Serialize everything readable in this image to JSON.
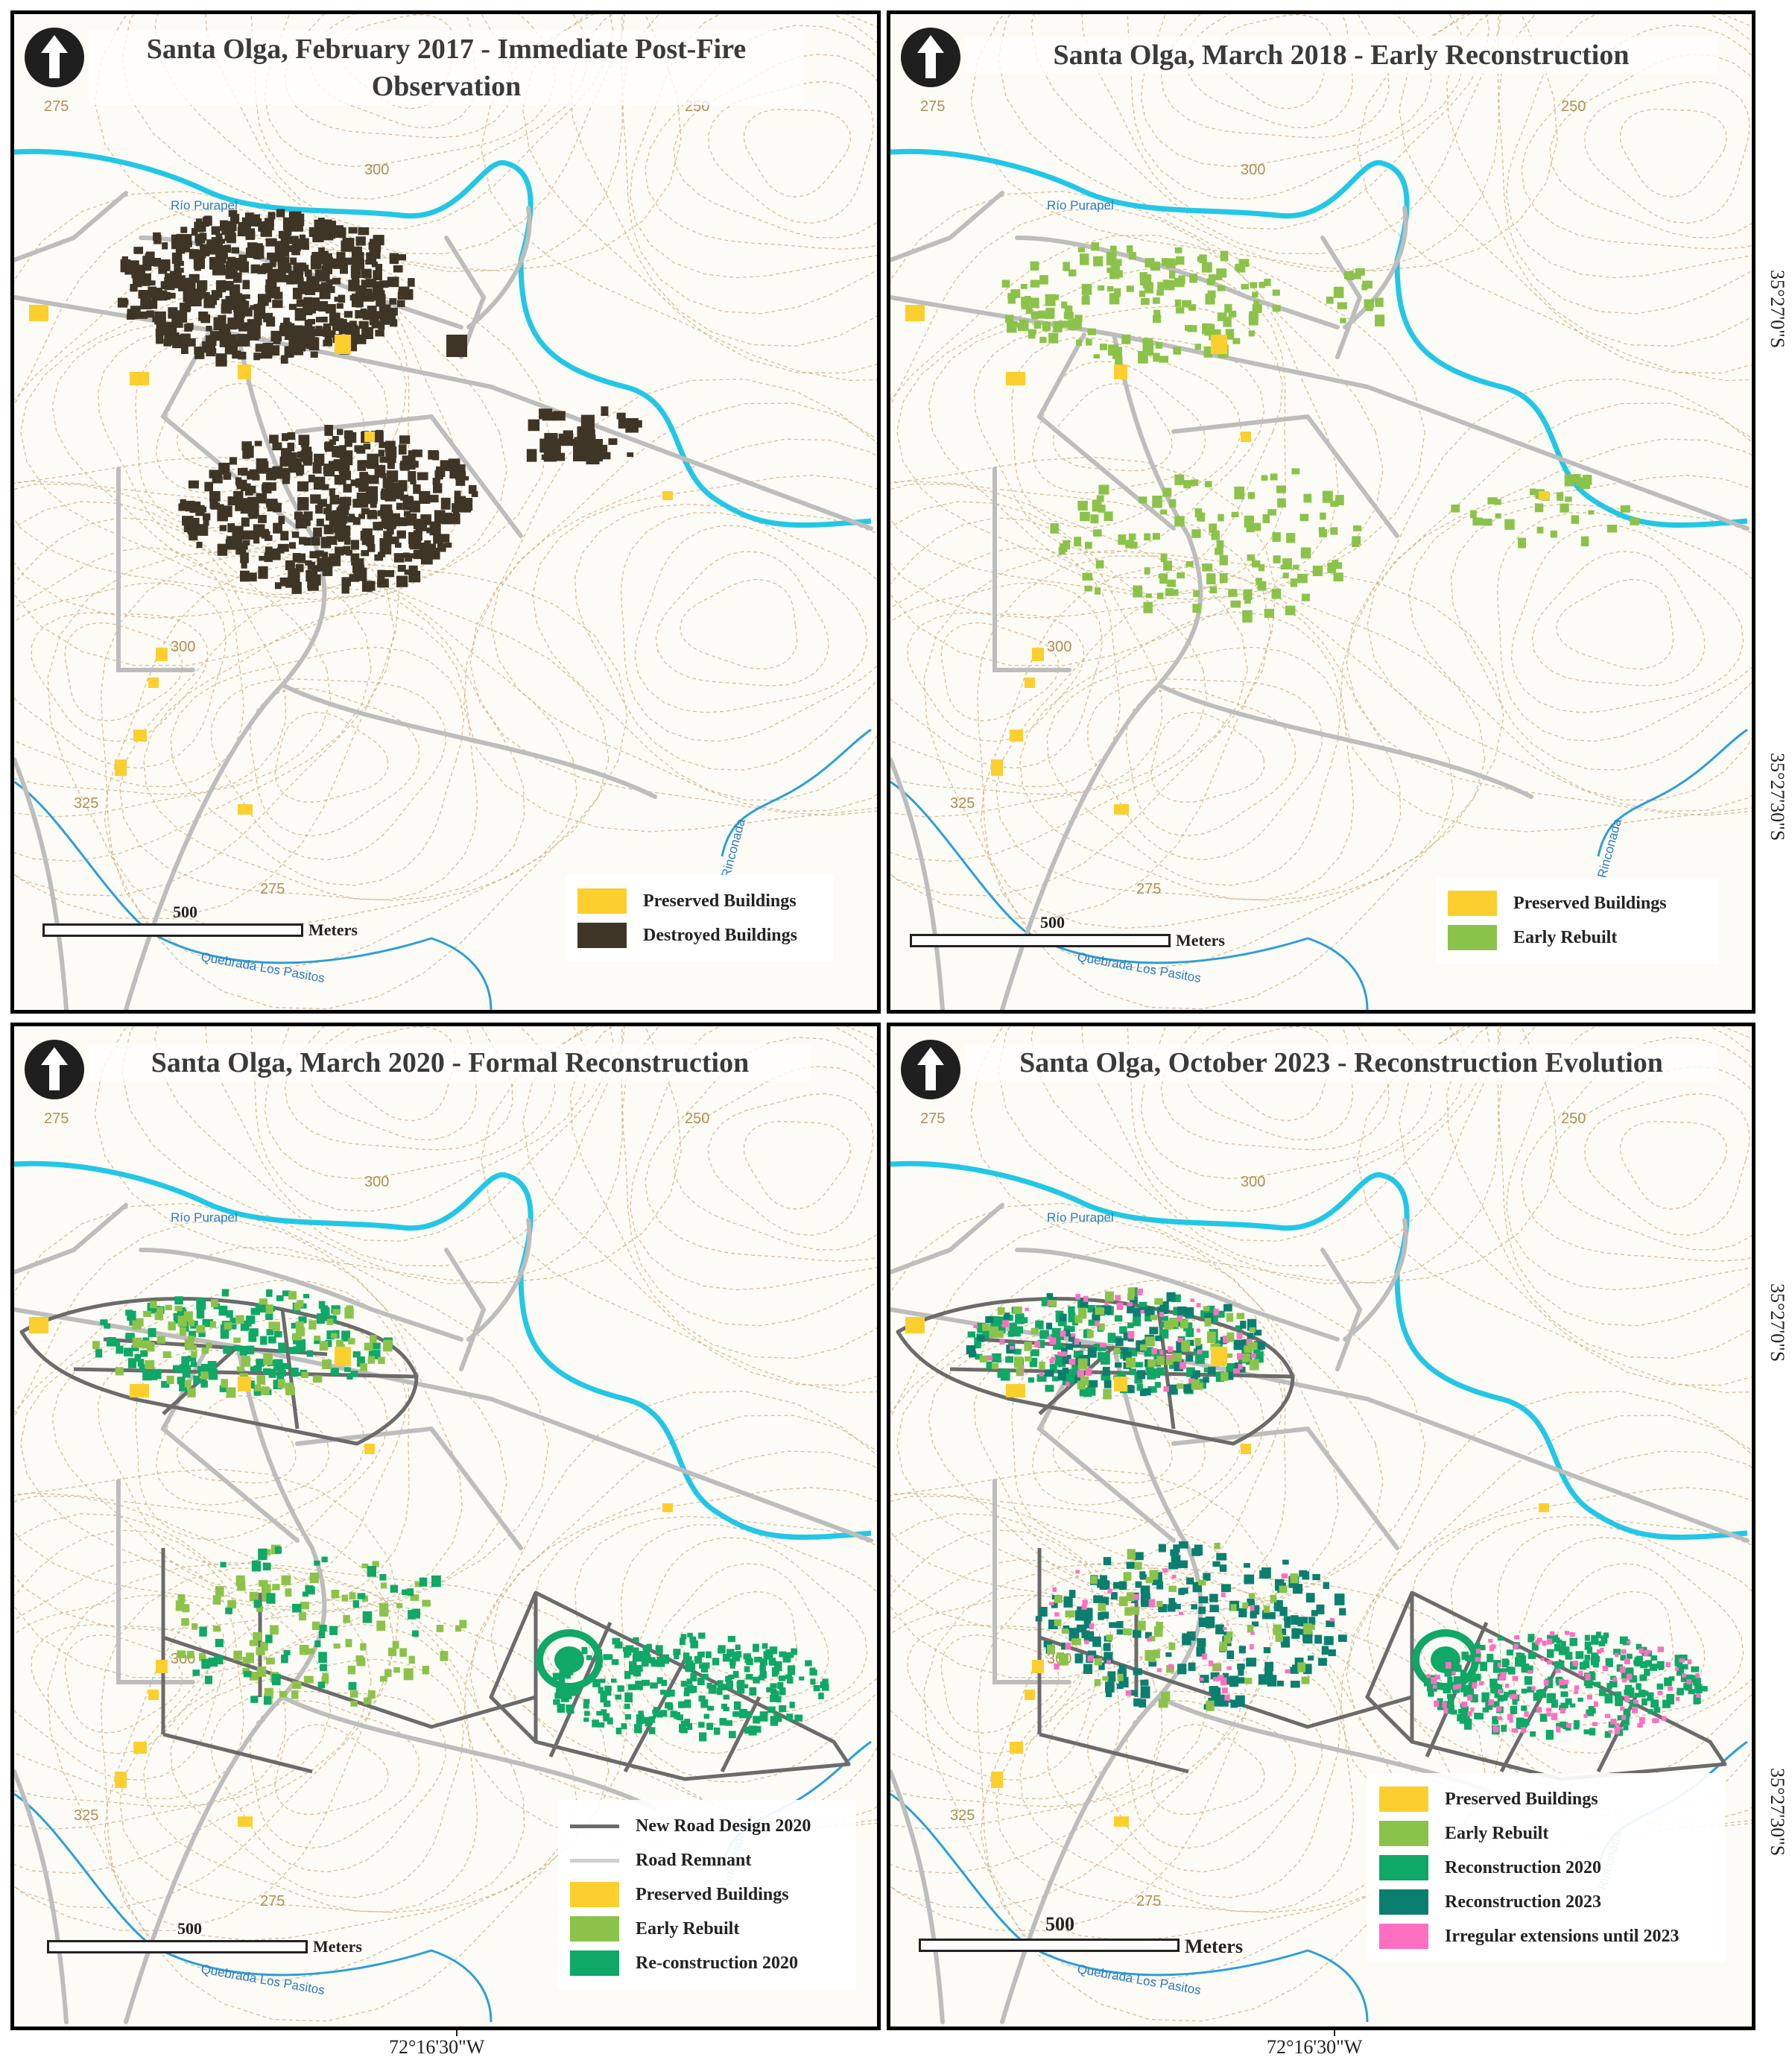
{
  "figure": {
    "panels": [
      {
        "title": "Santa Olga, February 2017 - Immediate Post-Fire Observation",
        "title_lines": [
          "Santa Olga, February 2017 - Immediate Post-Fire",
          "Observation"
        ],
        "legend": [
          {
            "type": "fill",
            "color": "#fccf2e",
            "label": "Preserved Buildings"
          },
          {
            "type": "fill",
            "color": "#3f3526",
            "label": "Destroyed Buildings"
          }
        ],
        "scale": {
          "value": "500",
          "unit": "Meters"
        }
      },
      {
        "title": "Santa Olga, March 2018 - Early Reconstruction",
        "title_lines": [
          "Santa Olga, March 2018 - Early Reconstruction"
        ],
        "legend": [
          {
            "type": "fill",
            "color": "#fccf2e",
            "label": "Preserved Buildings"
          },
          {
            "type": "fill",
            "color": "#8bc34a",
            "label": "Early Rebuilt"
          }
        ],
        "scale": {
          "value": "500",
          "unit": "Meters"
        }
      },
      {
        "title": "Santa Olga, March 2020 - Formal Reconstruction",
        "title_lines": [
          "Santa Olga, March 2020 - Formal Reconstruction"
        ],
        "legend": [
          {
            "type": "line",
            "color": "#6b6b6b",
            "label": "New Road Design 2020"
          },
          {
            "type": "line",
            "color": "#cfcfcf",
            "label": "Road Remnant"
          },
          {
            "type": "fill",
            "color": "#fccf2e",
            "label": "Preserved Buildings"
          },
          {
            "type": "fill",
            "color": "#8bc34a",
            "label": "Early Rebuilt"
          },
          {
            "type": "fill",
            "color": "#0fa866",
            "label": "Re-construction 2020"
          }
        ],
        "scale": {
          "value": "500",
          "unit": "Meters"
        }
      },
      {
        "title": "Santa Olga, October 2023 - Reconstruction Evolution",
        "title_lines": [
          "Santa Olga, October 2023 - Reconstruction Evolution"
        ],
        "legend": [
          {
            "type": "fill",
            "color": "#fccf2e",
            "label": "Preserved Buildings"
          },
          {
            "type": "fill",
            "color": "#8bc34a",
            "label": "Early Rebuilt"
          },
          {
            "type": "fill",
            "color": "#0fa866",
            "label": "Reconstruction 2020"
          },
          {
            "type": "fill",
            "color": "#0a7f6f",
            "label": "Reconstruction 2023"
          },
          {
            "type": "fill",
            "color": "#ff6fc1",
            "label": "Irregular extensions until 2023"
          }
        ],
        "scale": {
          "value": "500",
          "unit": "Meters"
        }
      }
    ],
    "map_labels": {
      "river": "Río Purapel",
      "creek1": "Rinconada",
      "creek2": "Quebrada Los Pasitos",
      "contours": [
        "275",
        "300",
        "250",
        "325",
        "275",
        "300"
      ]
    },
    "coordinates": {
      "lon": "72°16'30\"W",
      "lat_top": "35°27'0\"S",
      "lat_bottom": "35°27'30\"S"
    },
    "colors": {
      "river": "#22c7e6",
      "creek": "#2c9fd8",
      "road": "#bdbdbd",
      "new_road": "#6b6b6b",
      "contour": "#c6a97a",
      "background": "#fdfbf5"
    }
  }
}
